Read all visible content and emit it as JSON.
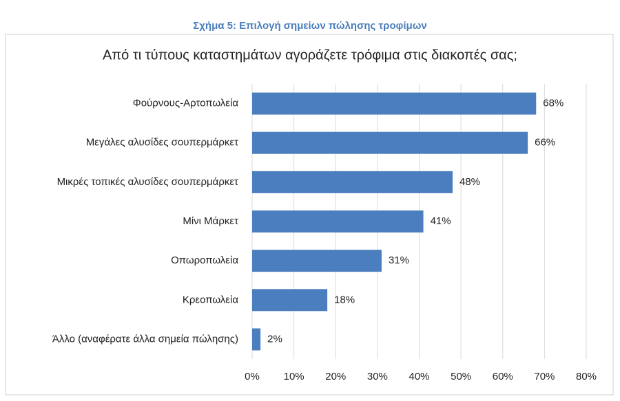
{
  "caption": "Σχήμα 5: Επιλογή σημείων πώλησης τροφίμων",
  "chart_data": {
    "type": "bar",
    "orientation": "horizontal",
    "title": "Από τι τύπους καταστημάτων αγοράζετε τρόφιμα στις διακοπές σας;",
    "categories": [
      "Φούρνους-Αρτοπωλεία",
      "Μεγάλες αλυσίδες σουπερμάρκετ",
      "Μικρές τοπικές αλυσίδες σουπερμάρκετ",
      "Μίνι Μάρκετ",
      "Οπωροπωλεία",
      "Κρεοπωλεία",
      "Άλλο (αναφέρατε άλλα σημεία πώλησης)"
    ],
    "values": [
      68,
      66,
      48,
      41,
      31,
      18,
      2
    ],
    "value_labels": [
      "68%",
      "66%",
      "48%",
      "41%",
      "31%",
      "18%",
      "2%"
    ],
    "color": "#4a7ebf",
    "xlim": [
      0,
      80
    ],
    "xticks": [
      {
        "value": 0,
        "label": "0%"
      },
      {
        "value": 10,
        "label": "10%"
      },
      {
        "value": 20,
        "label": "20%"
      },
      {
        "value": 30,
        "label": "30%"
      },
      {
        "value": 40,
        "label": "40%"
      },
      {
        "value": 50,
        "label": "50%"
      },
      {
        "value": 60,
        "label": "60%"
      },
      {
        "value": 70,
        "label": "70%"
      },
      {
        "value": 80,
        "label": "80%"
      }
    ],
    "grid": true
  }
}
